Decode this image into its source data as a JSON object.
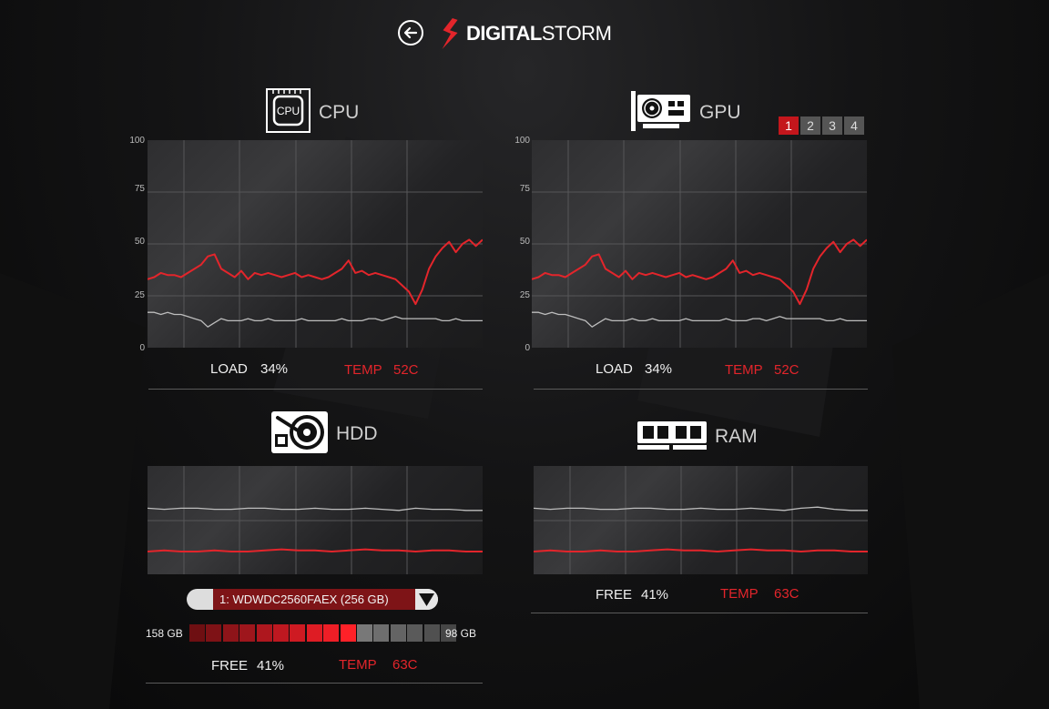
{
  "brand": {
    "part1": "DIGITAL",
    "part2": "STORM"
  },
  "cpu": {
    "title": "CPU",
    "icon_label": "CPU",
    "y_ticks": [
      "100",
      "75",
      "50",
      "25",
      "0"
    ],
    "load_label": "LOAD",
    "load_value": "34%",
    "temp_label": "TEMP",
    "temp_value": "52C"
  },
  "gpu": {
    "title": "GPU",
    "y_ticks": [
      "100",
      "75",
      "50",
      "25",
      "0"
    ],
    "tabs": [
      "1",
      "2",
      "3",
      "4"
    ],
    "active_tab": "1",
    "load_label": "LOAD",
    "load_value": "34%",
    "temp_label": "TEMP",
    "temp_value": "52C"
  },
  "hdd": {
    "title": "HDD",
    "drive": "1: WDWDC2560FAEX   (256 GB)",
    "used_label": "158 GB",
    "free_space_label": "98 GB",
    "used_fraction": 0.62,
    "free_label": "FREE",
    "free_value": "41%",
    "temp_label": "TEMP",
    "temp_value": "63C"
  },
  "ram": {
    "title": "RAM",
    "free_label": "FREE",
    "free_value": "41%",
    "temp_label": "TEMP",
    "temp_value": "63C"
  },
  "chart_data": [
    {
      "type": "line",
      "panel": "cpu",
      "ylim": [
        0,
        100
      ],
      "y_ticks": [
        0,
        25,
        50,
        75,
        100
      ],
      "x": [
        0,
        2,
        4,
        6,
        8,
        10,
        12,
        14,
        16,
        18,
        20,
        22,
        24,
        26,
        28,
        30,
        32,
        34,
        36,
        38,
        40,
        42,
        44,
        46,
        48,
        50,
        52,
        54,
        56,
        58,
        60,
        62,
        64,
        66,
        68,
        70,
        72,
        74,
        76,
        78,
        80,
        82,
        84,
        86,
        88,
        90,
        92,
        94,
        96,
        98,
        100
      ],
      "series": [
        {
          "color": "#e3252b",
          "values": [
            33,
            34,
            36,
            35,
            35,
            34,
            36,
            38,
            40,
            44,
            45,
            38,
            36,
            34,
            37,
            33,
            36,
            35,
            36,
            35,
            34,
            35,
            36,
            34,
            35,
            34,
            33,
            34,
            36,
            38,
            42,
            36,
            37,
            35,
            36,
            35,
            34,
            33,
            30,
            27,
            21,
            28,
            38,
            44,
            48,
            51,
            46,
            50,
            52,
            49,
            52
          ]
        },
        {
          "color": "#bdbdbd",
          "values": [
            17,
            17,
            16,
            17,
            16,
            16,
            15,
            14,
            13,
            10,
            12,
            14,
            13,
            13,
            13,
            14,
            13,
            13,
            14,
            13,
            13,
            13,
            13,
            14,
            13,
            13,
            13,
            13,
            13,
            14,
            13,
            13,
            13,
            14,
            14,
            13,
            14,
            15,
            14,
            14,
            14,
            14,
            14,
            14,
            13,
            13,
            14,
            13,
            13,
            13,
            13
          ]
        }
      ]
    },
    {
      "type": "line",
      "panel": "gpu",
      "ylim": [
        0,
        100
      ],
      "y_ticks": [
        0,
        25,
        50,
        75,
        100
      ],
      "x": [
        0,
        2,
        4,
        6,
        8,
        10,
        12,
        14,
        16,
        18,
        20,
        22,
        24,
        26,
        28,
        30,
        32,
        34,
        36,
        38,
        40,
        42,
        44,
        46,
        48,
        50,
        52,
        54,
        56,
        58,
        60,
        62,
        64,
        66,
        68,
        70,
        72,
        74,
        76,
        78,
        80,
        82,
        84,
        86,
        88,
        90,
        92,
        94,
        96,
        98,
        100
      ],
      "series": [
        {
          "color": "#e3252b",
          "values": [
            33,
            34,
            36,
            35,
            35,
            34,
            36,
            38,
            40,
            44,
            45,
            38,
            36,
            34,
            37,
            33,
            36,
            35,
            36,
            35,
            34,
            35,
            36,
            34,
            35,
            34,
            33,
            34,
            36,
            38,
            42,
            36,
            37,
            35,
            36,
            35,
            34,
            33,
            30,
            27,
            21,
            28,
            38,
            44,
            48,
            51,
            46,
            50,
            52,
            49,
            52
          ]
        },
        {
          "color": "#bdbdbd",
          "values": [
            17,
            17,
            16,
            17,
            16,
            16,
            15,
            14,
            13,
            10,
            12,
            14,
            13,
            13,
            13,
            14,
            13,
            13,
            14,
            13,
            13,
            13,
            13,
            14,
            13,
            13,
            13,
            13,
            13,
            14,
            13,
            13,
            13,
            14,
            14,
            13,
            14,
            15,
            14,
            14,
            14,
            14,
            14,
            14,
            13,
            13,
            14,
            13,
            13,
            13,
            13
          ]
        }
      ]
    },
    {
      "type": "line",
      "panel": "hdd",
      "ylim": [
        0,
        100
      ],
      "x": [
        0,
        5,
        10,
        15,
        20,
        25,
        30,
        35,
        40,
        45,
        50,
        55,
        60,
        65,
        70,
        75,
        80,
        85,
        90,
        95,
        100
      ],
      "series": [
        {
          "color": "#bdbdbd",
          "values": [
            61,
            60,
            61,
            61,
            60,
            60,
            61,
            61,
            60,
            60,
            61,
            60,
            60,
            61,
            60,
            59,
            61,
            60,
            60,
            59,
            59
          ]
        },
        {
          "color": "#e3252b",
          "values": [
            21,
            22,
            21,
            21,
            22,
            21,
            21,
            22,
            23,
            22,
            22,
            21,
            22,
            23,
            22,
            22,
            21,
            22,
            22,
            21,
            21
          ]
        }
      ]
    },
    {
      "type": "line",
      "panel": "ram",
      "ylim": [
        0,
        100
      ],
      "x": [
        0,
        5,
        10,
        15,
        20,
        25,
        30,
        35,
        40,
        45,
        50,
        55,
        60,
        65,
        70,
        75,
        80,
        85,
        90,
        95,
        100
      ],
      "series": [
        {
          "color": "#bdbdbd",
          "values": [
            61,
            60,
            61,
            61,
            60,
            60,
            61,
            61,
            60,
            60,
            61,
            60,
            60,
            61,
            60,
            59,
            61,
            62,
            60,
            59,
            59
          ]
        },
        {
          "color": "#e3252b",
          "values": [
            21,
            22,
            21,
            21,
            22,
            21,
            21,
            22,
            23,
            22,
            22,
            21,
            22,
            23,
            22,
            22,
            21,
            22,
            22,
            21,
            21
          ]
        }
      ]
    }
  ]
}
